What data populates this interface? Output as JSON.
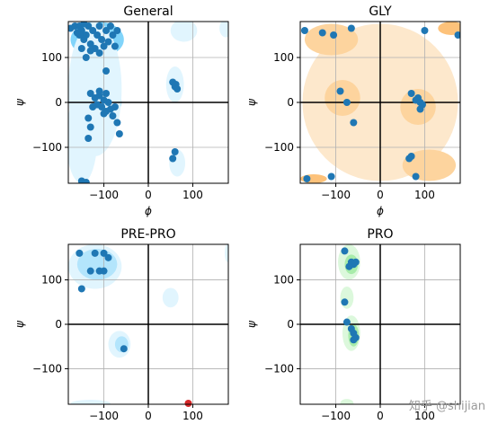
{
  "figure": {
    "watermark": "知乎 @shijian"
  },
  "chart_data": [
    {
      "type": "scatter",
      "title": "General",
      "xlabel": "ϕ",
      "ylabel": "ψ",
      "xlim": [
        -180,
        180
      ],
      "ylim": [
        -180,
        180
      ],
      "xticks": [
        -100,
        0,
        100
      ],
      "yticks": [
        -100,
        0,
        100
      ],
      "grid": true,
      "density_regions": [
        {
          "cx": -115,
          "cy": 140,
          "rx": 60,
          "ry": 40,
          "level": 3
        },
        {
          "cx": -100,
          "cy": 0,
          "rx": 40,
          "ry": 30,
          "level": 3
        },
        {
          "cx": -150,
          "cy": -30,
          "rx": 25,
          "ry": 30,
          "level": 2
        },
        {
          "cx": -120,
          "cy": 30,
          "rx": 60,
          "ry": 150,
          "level": 1
        },
        {
          "cx": -150,
          "cy": -80,
          "rx": 35,
          "ry": 100,
          "level": 1
        },
        {
          "cx": 60,
          "cy": 40,
          "rx": 20,
          "ry": 40,
          "level": 1
        },
        {
          "cx": 65,
          "cy": -135,
          "rx": 18,
          "ry": 30,
          "level": 1
        },
        {
          "cx": 80,
          "cy": 160,
          "rx": 30,
          "ry": 25,
          "level": 1
        },
        {
          "cx": 175,
          "cy": 165,
          "rx": 15,
          "ry": 20,
          "level": 1
        }
      ],
      "points": [
        [
          -175,
          165
        ],
        [
          -165,
          170
        ],
        [
          -160,
          155
        ],
        [
          -155,
          170
        ],
        [
          -150,
          160
        ],
        [
          -145,
          140
        ],
        [
          -140,
          150
        ],
        [
          -135,
          170
        ],
        [
          -130,
          130
        ],
        [
          -125,
          160
        ],
        [
          -120,
          120
        ],
        [
          -115,
          150
        ],
        [
          -110,
          170
        ],
        [
          -105,
          140
        ],
        [
          -100,
          125
        ],
        [
          -95,
          160
        ],
        [
          -90,
          135
        ],
        [
          -85,
          170
        ],
        [
          -80,
          150
        ],
        [
          -75,
          125
        ],
        [
          -70,
          160
        ],
        [
          -150,
          120
        ],
        [
          -140,
          100
        ],
        [
          -130,
          115
        ],
        [
          -95,
          70
        ],
        [
          -155,
          150
        ],
        [
          -145,
          175
        ],
        [
          -110,
          110
        ],
        [
          -130,
          20
        ],
        [
          -120,
          10
        ],
        [
          -115,
          -5
        ],
        [
          -110,
          15
        ],
        [
          -105,
          -10
        ],
        [
          -100,
          5
        ],
        [
          -95,
          -20
        ],
        [
          -90,
          0
        ],
        [
          -85,
          -15
        ],
        [
          -80,
          -30
        ],
        [
          -75,
          -10
        ],
        [
          -70,
          -45
        ],
        [
          -65,
          -70
        ],
        [
          -100,
          -25
        ],
        [
          -125,
          -10
        ],
        [
          -110,
          25
        ],
        [
          -95,
          20
        ],
        [
          -135,
          -35
        ],
        [
          -130,
          -55
        ],
        [
          -135,
          -80
        ],
        [
          -150,
          -175
        ],
        [
          -140,
          -178
        ],
        [
          55,
          45
        ],
        [
          60,
          35
        ],
        [
          62,
          40
        ],
        [
          65,
          30
        ],
        [
          60,
          -110
        ],
        [
          55,
          -125
        ]
      ],
      "point_color": "#1f77b4",
      "fill_colors": [
        "#e1f5fe",
        "#b3e5fc",
        "#81d4fa"
      ]
    },
    {
      "type": "scatter",
      "title": "GLY",
      "xlabel": "ϕ",
      "ylabel": "ψ",
      "xlim": [
        -180,
        180
      ],
      "ylim": [
        -180,
        180
      ],
      "xticks": [
        -100,
        0,
        100
      ],
      "yticks": [
        -100,
        0,
        100
      ],
      "grid": true,
      "density_regions": [
        {
          "cx": 0,
          "cy": 0,
          "rx": 175,
          "ry": 175,
          "level": 1
        },
        {
          "cx": -110,
          "cy": 140,
          "rx": 60,
          "ry": 35,
          "level": 2
        },
        {
          "cx": -85,
          "cy": 10,
          "rx": 40,
          "ry": 40,
          "level": 2
        },
        {
          "cx": 85,
          "cy": -10,
          "rx": 40,
          "ry": 40,
          "level": 2
        },
        {
          "cx": 110,
          "cy": -140,
          "rx": 60,
          "ry": 35,
          "level": 2
        },
        {
          "cx": -150,
          "cy": -170,
          "rx": 30,
          "ry": 10,
          "level": 3
        },
        {
          "cx": 160,
          "cy": 165,
          "rx": 30,
          "ry": 15,
          "level": 3
        }
      ],
      "points": [
        [
          -170,
          160
        ],
        [
          -130,
          155
        ],
        [
          -105,
          150
        ],
        [
          -65,
          165
        ],
        [
          100,
          160
        ],
        [
          175,
          150
        ],
        [
          -90,
          25
        ],
        [
          -75,
          0
        ],
        [
          -60,
          -45
        ],
        [
          70,
          20
        ],
        [
          80,
          5
        ],
        [
          85,
          10
        ],
        [
          90,
          0
        ],
        [
          90,
          -15
        ],
        [
          95,
          -5
        ],
        [
          70,
          -120
        ],
        [
          65,
          -125
        ],
        [
          80,
          -165
        ],
        [
          -110,
          -165
        ],
        [
          -165,
          -170
        ]
      ],
      "point_color": "#1f77b4",
      "fill_colors": [
        "#fde8cc",
        "#fdd49e",
        "#fdc27a"
      ]
    },
    {
      "type": "scatter",
      "title": "PRE-PRO",
      "xlabel": "",
      "ylabel": "ψ",
      "xlim": [
        -180,
        180
      ],
      "ylim": [
        -180,
        180
      ],
      "xticks": [
        -100,
        0,
        100
      ],
      "yticks": [
        -100,
        0,
        100
      ],
      "grid": true,
      "density_regions": [
        {
          "cx": -120,
          "cy": 130,
          "rx": 60,
          "ry": 50,
          "level": 1
        },
        {
          "cx": -115,
          "cy": 135,
          "rx": 45,
          "ry": 35,
          "level": 2
        },
        {
          "cx": -65,
          "cy": -45,
          "rx": 25,
          "ry": 30,
          "level": 1
        },
        {
          "cx": -60,
          "cy": -45,
          "rx": 15,
          "ry": 18,
          "level": 2
        },
        {
          "cx": 50,
          "cy": 60,
          "rx": 18,
          "ry": 22,
          "level": 1
        },
        {
          "cx": -130,
          "cy": -178,
          "rx": 45,
          "ry": 8,
          "level": 1
        },
        {
          "cx": 178,
          "cy": 160,
          "rx": 6,
          "ry": 20,
          "level": 1
        }
      ],
      "points": [
        [
          -155,
          160
        ],
        [
          -150,
          80
        ],
        [
          -120,
          160
        ],
        [
          -100,
          160
        ],
        [
          -100,
          120
        ],
        [
          -90,
          150
        ],
        [
          -110,
          120
        ],
        [
          -130,
          120
        ],
        [
          -55,
          -55
        ]
      ],
      "outlier_points": [
        [
          90,
          -178
        ]
      ],
      "point_color": "#1f77b4",
      "outlier_color": "#d62728",
      "fill_colors": [
        "#e1f5fe",
        "#b3e5fc",
        "#81d4fa"
      ]
    },
    {
      "type": "scatter",
      "title": "PRO",
      "xlabel": "",
      "ylabel": "ψ",
      "xlim": [
        -180,
        180
      ],
      "ylim": [
        -180,
        180
      ],
      "xticks": [
        -100,
        0,
        100
      ],
      "yticks": [
        -100,
        0,
        100
      ],
      "grid": true,
      "density_regions": [
        {
          "cx": -70,
          "cy": 140,
          "rx": 25,
          "ry": 40,
          "level": 1
        },
        {
          "cx": -65,
          "cy": 135,
          "rx": 15,
          "ry": 22,
          "level": 2
        },
        {
          "cx": -75,
          "cy": 60,
          "rx": 15,
          "ry": 25,
          "level": 1
        },
        {
          "cx": -65,
          "cy": -20,
          "rx": 20,
          "ry": 40,
          "level": 1
        },
        {
          "cx": -60,
          "cy": -25,
          "rx": 12,
          "ry": 25,
          "level": 2
        },
        {
          "cx": -75,
          "cy": -178,
          "rx": 15,
          "ry": 10,
          "level": 1
        }
      ],
      "points": [
        [
          -80,
          165
        ],
        [
          -65,
          140
        ],
        [
          -60,
          135
        ],
        [
          -55,
          140
        ],
        [
          -70,
          130
        ],
        [
          -80,
          50
        ],
        [
          -75,
          5
        ],
        [
          -65,
          -10
        ],
        [
          -60,
          -20
        ],
        [
          -55,
          -30
        ],
        [
          -60,
          -35
        ]
      ],
      "point_color": "#1f77b4",
      "fill_colors": [
        "#dcf8dc",
        "#a8ecaa",
        "#7ede83"
      ]
    }
  ]
}
